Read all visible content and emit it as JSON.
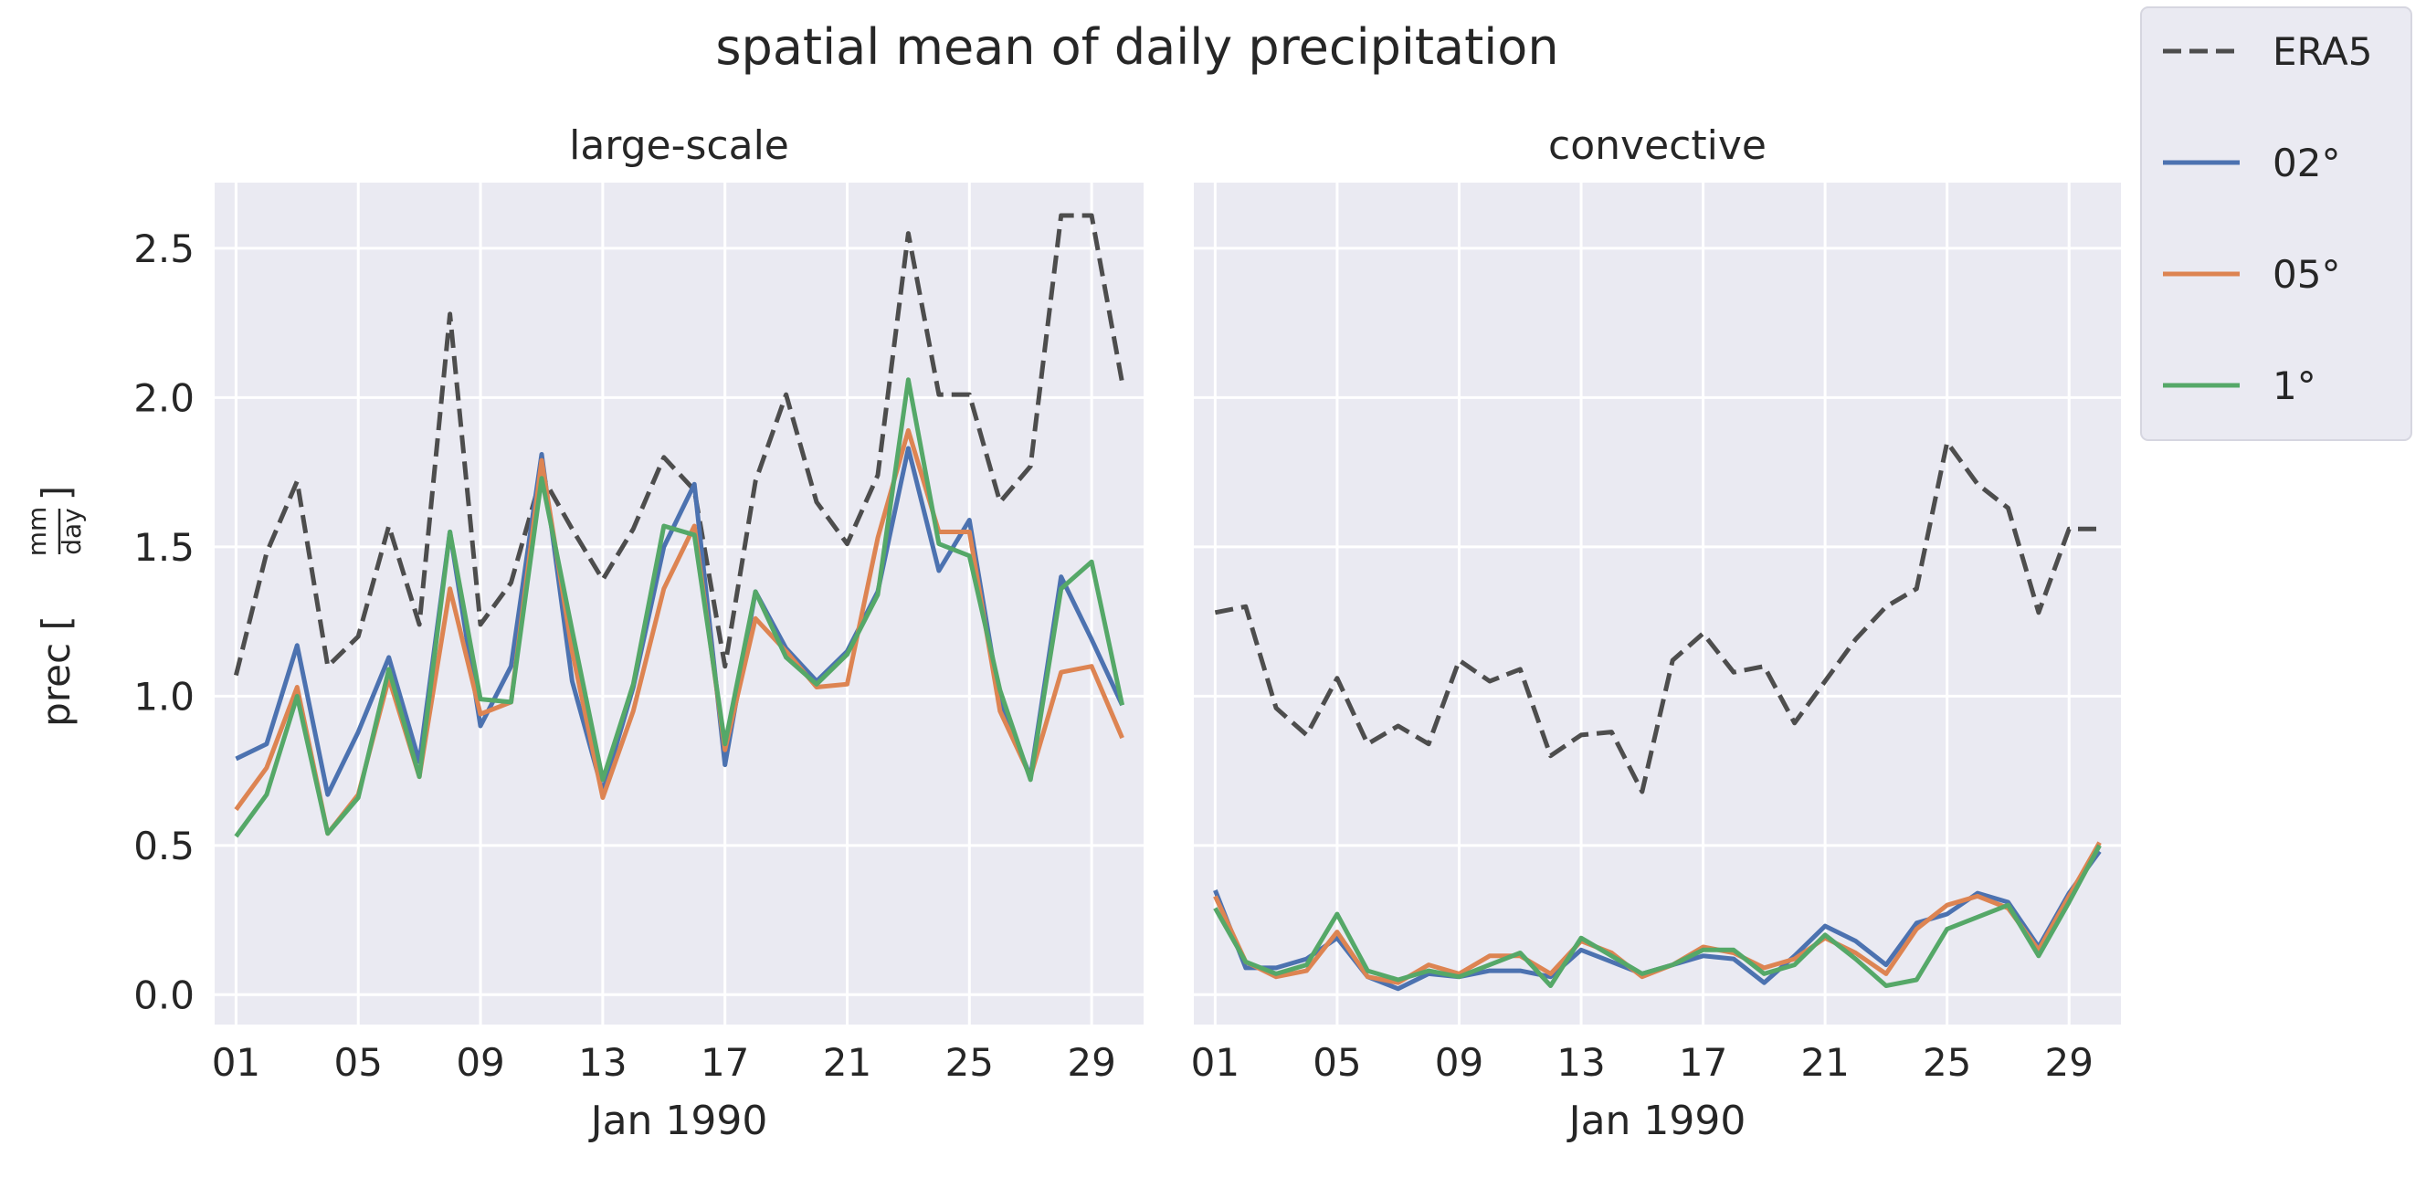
{
  "figure": {
    "suptitle": "spatial mean of daily precipitation",
    "ylabel_main": "prec [",
    "ylabel_num": "mm",
    "ylabel_den": "day",
    "ylabel_close": "]",
    "background": "#eaeaf2",
    "grid_color": "#ffffff"
  },
  "legend": {
    "placement": "outside-right-top",
    "entries": [
      {
        "label": "ERA5",
        "color": "#4d4d4d",
        "dash": true
      },
      {
        "label": "02°",
        "color": "#4c72b0",
        "dash": false
      },
      {
        "label": "05°",
        "color": "#dd8452",
        "dash": false
      },
      {
        "label": "1°",
        "color": "#55a868",
        "dash": false
      }
    ]
  },
  "chart_data": [
    {
      "type": "line",
      "title": "large-scale",
      "xlabel": "Jan 1990",
      "ylabel": "prec [mm/day]",
      "x": [
        1,
        2,
        3,
        4,
        5,
        6,
        7,
        8,
        9,
        10,
        11,
        12,
        13,
        14,
        15,
        16,
        17,
        18,
        19,
        20,
        21,
        22,
        23,
        24,
        25,
        26,
        27,
        28,
        29,
        30
      ],
      "xlim": [
        0.3,
        30.7
      ],
      "xticks": [
        1,
        5,
        9,
        13,
        17,
        21,
        25,
        29
      ],
      "xtick_labels": [
        "01",
        "05",
        "09",
        "13",
        "17",
        "21",
        "25",
        "29"
      ],
      "ylim": [
        -0.1,
        2.72
      ],
      "yticks": [
        0,
        0.5,
        1,
        1.5,
        2,
        2.5
      ],
      "ytick_labels": [
        "0.0",
        "0.5",
        "1.0",
        "1.5",
        "2.0",
        "2.5"
      ],
      "series": [
        {
          "name": "ERA5",
          "values": [
            1.07,
            1.48,
            1.72,
            1.1,
            1.2,
            1.57,
            1.24,
            2.28,
            1.24,
            1.38,
            1.74,
            1.56,
            1.39,
            1.56,
            1.8,
            1.69,
            1.1,
            1.72,
            2.01,
            1.65,
            1.51,
            1.74,
            2.55,
            2.01,
            2.01,
            1.65,
            1.77,
            2.61,
            2.61,
            2.05
          ]
        },
        {
          "name": "02°",
          "values": [
            0.79,
            0.84,
            1.17,
            0.67,
            0.88,
            1.13,
            0.78,
            1.55,
            0.9,
            1.1,
            1.81,
            1.05,
            0.68,
            1.03,
            1.5,
            1.71,
            0.77,
            1.35,
            1.16,
            1.05,
            1.15,
            1.35,
            1.83,
            1.42,
            1.59,
            0.98,
            0.73,
            1.4,
            1.19,
            0.97
          ]
        },
        {
          "name": "05°",
          "values": [
            0.62,
            0.76,
            1.03,
            0.54,
            0.67,
            1.06,
            0.73,
            1.36,
            0.94,
            0.98,
            1.79,
            1.15,
            0.66,
            0.95,
            1.36,
            1.57,
            0.82,
            1.26,
            1.15,
            1.03,
            1.04,
            1.53,
            1.89,
            1.55,
            1.55,
            0.95,
            0.73,
            1.08,
            1.1,
            0.86
          ]
        },
        {
          "name": "1°",
          "values": [
            0.53,
            0.67,
            1.0,
            0.54,
            0.66,
            1.09,
            0.73,
            1.55,
            0.99,
            0.98,
            1.73,
            1.22,
            0.72,
            1.04,
            1.57,
            1.54,
            0.84,
            1.35,
            1.13,
            1.04,
            1.14,
            1.34,
            2.06,
            1.51,
            1.47,
            1.02,
            0.72,
            1.36,
            1.45,
            0.97
          ]
        }
      ]
    },
    {
      "type": "line",
      "title": "convective",
      "xlabel": "Jan 1990",
      "ylabel": "",
      "x": [
        1,
        2,
        3,
        4,
        5,
        6,
        7,
        8,
        9,
        10,
        11,
        12,
        13,
        14,
        15,
        16,
        17,
        18,
        19,
        20,
        21,
        22,
        23,
        24,
        25,
        26,
        27,
        28,
        29,
        30
      ],
      "xlim": [
        0.3,
        30.7
      ],
      "xticks": [
        1,
        5,
        9,
        13,
        17,
        21,
        25,
        29
      ],
      "xtick_labels": [
        "01",
        "05",
        "09",
        "13",
        "17",
        "21",
        "25",
        "29"
      ],
      "ylim": [
        -0.1,
        2.72
      ],
      "yticks": [
        0,
        0.5,
        1,
        1.5,
        2,
        2.5
      ],
      "ytick_labels": [
        "",
        "",
        "",
        "",
        "",
        ""
      ],
      "series": [
        {
          "name": "ERA5",
          "values": [
            1.28,
            1.3,
            0.96,
            0.87,
            1.06,
            0.84,
            0.9,
            0.84,
            1.12,
            1.05,
            1.09,
            0.8,
            0.87,
            0.88,
            0.68,
            1.12,
            1.21,
            1.08,
            1.1,
            0.91,
            1.05,
            1.19,
            1.3,
            1.36,
            1.85,
            1.71,
            1.63,
            1.28,
            1.56,
            1.56
          ]
        },
        {
          "name": "02°",
          "values": [
            0.35,
            0.09,
            0.09,
            0.12,
            0.19,
            0.06,
            0.02,
            0.07,
            0.06,
            0.08,
            0.08,
            0.06,
            0.15,
            0.11,
            0.07,
            0.1,
            0.13,
            0.12,
            0.04,
            0.13,
            0.23,
            0.18,
            0.1,
            0.24,
            0.27,
            0.34,
            0.31,
            0.16,
            0.34,
            0.48
          ]
        },
        {
          "name": "05°",
          "values": [
            0.33,
            0.11,
            0.06,
            0.08,
            0.21,
            0.06,
            0.04,
            0.1,
            0.07,
            0.13,
            0.13,
            0.07,
            0.18,
            0.14,
            0.06,
            0.1,
            0.16,
            0.14,
            0.09,
            0.12,
            0.19,
            0.14,
            0.07,
            0.22,
            0.3,
            0.33,
            0.29,
            0.15,
            0.33,
            0.51
          ]
        },
        {
          "name": "1°",
          "values": [
            0.29,
            0.11,
            0.07,
            0.1,
            0.27,
            0.08,
            0.05,
            0.08,
            0.06,
            0.1,
            0.14,
            0.03,
            0.19,
            0.13,
            0.07,
            0.1,
            0.15,
            0.15,
            0.07,
            0.1,
            0.2,
            0.12,
            0.03,
            0.05,
            0.22,
            0.26,
            0.3,
            0.13,
            0.31,
            0.5
          ]
        }
      ]
    }
  ]
}
